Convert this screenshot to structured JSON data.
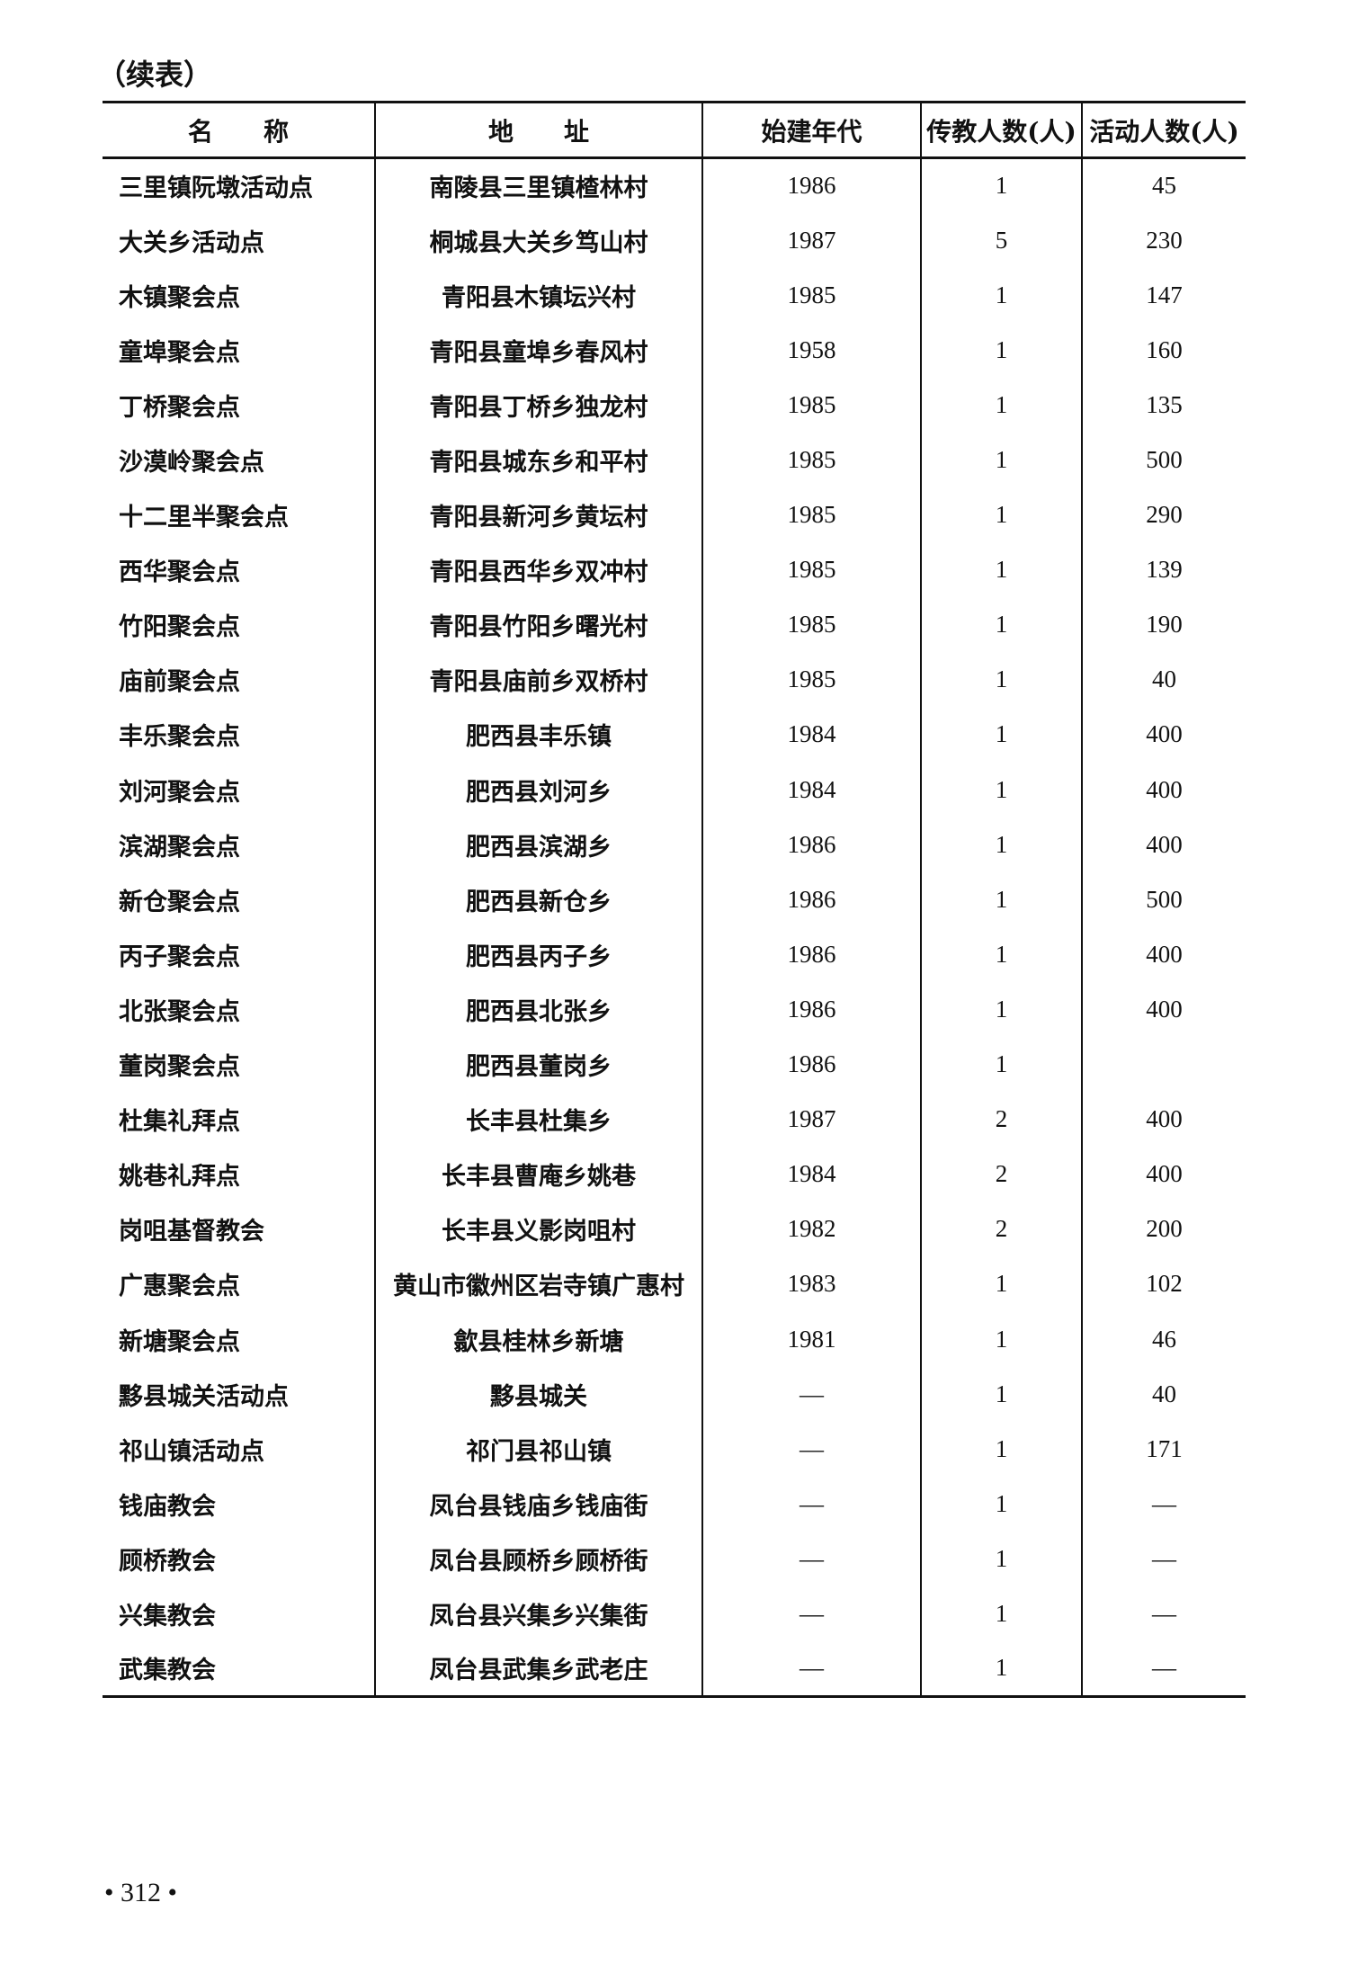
{
  "caption": "（续表）",
  "table": {
    "headers": [
      "名　　称",
      "地　　址",
      "始建年代",
      "传教人数(人)",
      "活动人数(人)"
    ],
    "rows": [
      [
        "三里镇阮墩活动点",
        "南陵县三里镇楂林村",
        "1986",
        "1",
        "45"
      ],
      [
        "大关乡活动点",
        "桐城县大关乡笃山村",
        "1987",
        "5",
        "230"
      ],
      [
        "木镇聚会点",
        "青阳县木镇坛兴村",
        "1985",
        "1",
        "147"
      ],
      [
        "童埠聚会点",
        "青阳县童埠乡春风村",
        "1958",
        "1",
        "160"
      ],
      [
        "丁桥聚会点",
        "青阳县丁桥乡独龙村",
        "1985",
        "1",
        "135"
      ],
      [
        "沙漠岭聚会点",
        "青阳县城东乡和平村",
        "1985",
        "1",
        "500"
      ],
      [
        "十二里半聚会点",
        "青阳县新河乡黄坛村",
        "1985",
        "1",
        "290"
      ],
      [
        "西华聚会点",
        "青阳县西华乡双冲村",
        "1985",
        "1",
        "139"
      ],
      [
        "竹阳聚会点",
        "青阳县竹阳乡曙光村",
        "1985",
        "1",
        "190"
      ],
      [
        "庙前聚会点",
        "青阳县庙前乡双桥村",
        "1985",
        "1",
        "40"
      ],
      [
        "丰乐聚会点",
        "肥西县丰乐镇",
        "1984",
        "1",
        "400"
      ],
      [
        "刘河聚会点",
        "肥西县刘河乡",
        "1984",
        "1",
        "400"
      ],
      [
        "滨湖聚会点",
        "肥西县滨湖乡",
        "1986",
        "1",
        "400"
      ],
      [
        "新仓聚会点",
        "肥西县新仓乡",
        "1986",
        "1",
        "500"
      ],
      [
        "丙子聚会点",
        "肥西县丙子乡",
        "1986",
        "1",
        "400"
      ],
      [
        "北张聚会点",
        "肥西县北张乡",
        "1986",
        "1",
        "400"
      ],
      [
        "董岗聚会点",
        "肥西县董岗乡",
        "1986",
        "1",
        ""
      ],
      [
        "杜集礼拜点",
        "长丰县杜集乡",
        "1987",
        "2",
        "400"
      ],
      [
        "姚巷礼拜点",
        "长丰县曹庵乡姚巷",
        "1984",
        "2",
        "400"
      ],
      [
        "岗咀基督教会",
        "长丰县义影岗咀村",
        "1982",
        "2",
        "200"
      ],
      [
        "广惠聚会点",
        "黄山市徽州区岩寺镇广惠村",
        "1983",
        "1",
        "102"
      ],
      [
        "新塘聚会点",
        "歙县桂林乡新塘",
        "1981",
        "1",
        "46"
      ],
      [
        "黟县城关活动点",
        "黟县城关",
        "—",
        "1",
        "40"
      ],
      [
        "祁山镇活动点",
        "祁门县祁山镇",
        "—",
        "1",
        "171"
      ],
      [
        "钱庙教会",
        "凤台县钱庙乡钱庙街",
        "—",
        "1",
        "—"
      ],
      [
        "顾桥教会",
        "凤台县顾桥乡顾桥街",
        "—",
        "1",
        "—"
      ],
      [
        "兴集教会",
        "凤台县兴集乡兴集街",
        "—",
        "1",
        "—"
      ],
      [
        "武集教会",
        "凤台县武集乡武老庄",
        "—",
        "1",
        "—"
      ]
    ]
  },
  "page_number": "• 312 •"
}
